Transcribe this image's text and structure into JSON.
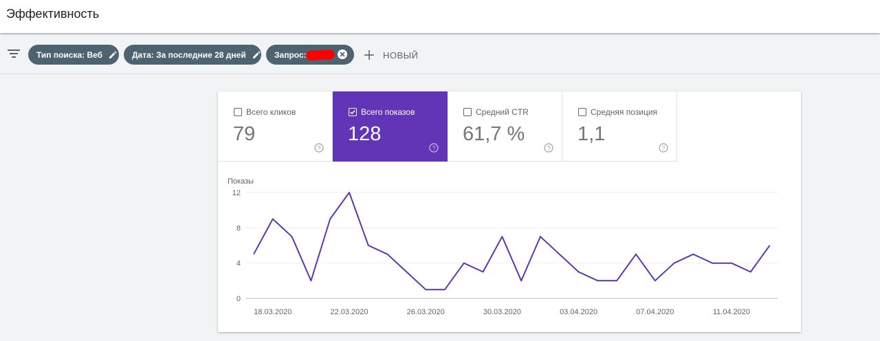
{
  "header": {
    "title": "Эффективность"
  },
  "filters": {
    "search_type": "Тип поиска: Веб",
    "date": "Дата: За последние 28 дней",
    "query": "Запрос:",
    "new_label": "НОВЫЙ"
  },
  "metrics": [
    {
      "label": "Всего кликов",
      "value": "79",
      "checked": false
    },
    {
      "label": "Всего показов",
      "value": "128",
      "checked": true
    },
    {
      "label": "Средний CTR",
      "value": "61,7 %",
      "checked": false
    },
    {
      "label": "Средняя позиция",
      "value": "1,1",
      "checked": false
    }
  ],
  "colors": {
    "accent": "#6135b5",
    "chip": "#4d6470",
    "line": "#5e35b1"
  },
  "chart_data": {
    "type": "line",
    "ylabel": "Показы",
    "ylim": [
      0,
      12
    ],
    "yticks": [
      "0",
      "4",
      "8",
      "12"
    ],
    "xticks": [
      "18.03.2020",
      "22.03.2020",
      "26.03.2020",
      "30.03.2020",
      "03.04.2020",
      "07.04.2020",
      "11.04.2020"
    ],
    "x": [
      "17.03.2020",
      "18.03.2020",
      "19.03.2020",
      "20.03.2020",
      "21.03.2020",
      "22.03.2020",
      "23.03.2020",
      "24.03.2020",
      "25.03.2020",
      "26.03.2020",
      "27.03.2020",
      "28.03.2020",
      "29.03.2020",
      "30.03.2020",
      "31.03.2020",
      "01.04.2020",
      "02.04.2020",
      "03.04.2020",
      "04.04.2020",
      "05.04.2020",
      "06.04.2020",
      "07.04.2020",
      "08.04.2020",
      "09.04.2020",
      "10.04.2020",
      "11.04.2020",
      "12.04.2020",
      "13.04.2020"
    ],
    "values": [
      5,
      9,
      7,
      2,
      9,
      12,
      6,
      5,
      3,
      1,
      1,
      4,
      3,
      7,
      2,
      7,
      5,
      3,
      2,
      2,
      5,
      2,
      4,
      5,
      4,
      4,
      3,
      6
    ],
    "grid": true
  }
}
